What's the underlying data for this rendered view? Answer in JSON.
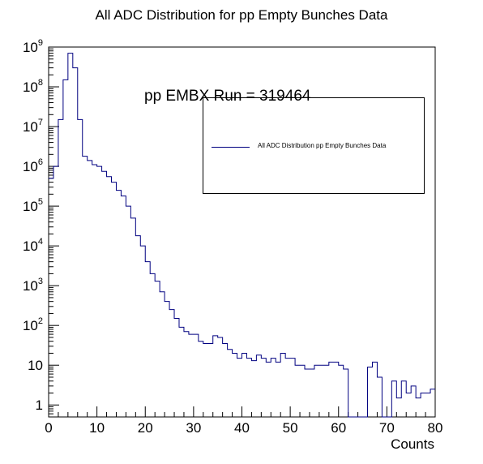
{
  "title": "All ADC Distribution for pp Empty Bunches Data",
  "annotation": "pp EMBX Run = 319464",
  "chart_data": {
    "type": "histogram",
    "title": "All ADC Distribution for pp Empty Bunches Data",
    "xlabel": "Counts",
    "ylabel": "",
    "xlim": [
      0,
      80
    ],
    "ylim": [
      0.5,
      1000000000
    ],
    "yscale": "log",
    "grid": false,
    "legend": {
      "placement": "top-right",
      "entries": [
        {
          "name": "All ADC Distribution pp Empty Bunches Data",
          "color": "#000080"
        }
      ]
    },
    "x_ticks": [
      "0",
      "10",
      "20",
      "30",
      "40",
      "50",
      "60",
      "70",
      "80"
    ],
    "y_ticks": [
      {
        "base": "1",
        "exp": ""
      },
      {
        "base": "10",
        "exp": ""
      },
      {
        "base": "10",
        "exp": "2"
      },
      {
        "base": "10",
        "exp": "3"
      },
      {
        "base": "10",
        "exp": "4"
      },
      {
        "base": "10",
        "exp": "5"
      },
      {
        "base": "10",
        "exp": "6"
      },
      {
        "base": "10",
        "exp": "7"
      },
      {
        "base": "10",
        "exp": "8"
      },
      {
        "base": "10",
        "exp": "9"
      }
    ],
    "bin_width": 1,
    "series": [
      {
        "name": "All ADC Distribution pp Empty Bunches Data",
        "color": "#000080",
        "x": [
          0,
          1,
          2,
          3,
          4,
          5,
          6,
          7,
          8,
          9,
          10,
          11,
          12,
          13,
          14,
          15,
          16,
          17,
          18,
          19,
          20,
          21,
          22,
          23,
          24,
          25,
          26,
          27,
          28,
          29,
          30,
          31,
          32,
          33,
          34,
          35,
          36,
          37,
          38,
          39,
          40,
          41,
          42,
          43,
          44,
          45,
          46,
          47,
          48,
          49,
          50,
          51,
          52,
          53,
          54,
          55,
          56,
          57,
          58,
          59,
          60,
          61,
          62,
          63,
          64,
          65,
          66,
          67,
          68,
          69,
          70,
          71,
          72,
          73,
          74,
          75,
          76,
          77,
          78,
          79
        ],
        "values": [
          500000,
          1000000,
          15000000,
          150000000,
          700000000,
          300000000,
          15000000,
          1800000,
          1400000,
          1100000,
          1000000,
          750000,
          550000,
          400000,
          250000,
          180000,
          100000,
          50000,
          18000,
          10000,
          4000,
          2000,
          1300,
          700,
          400,
          250,
          150,
          90,
          70,
          60,
          60,
          40,
          35,
          35,
          55,
          50,
          35,
          25,
          20,
          15,
          20,
          15,
          13,
          18,
          15,
          12,
          15,
          12,
          20,
          15,
          15,
          10,
          10,
          8,
          8,
          10,
          10,
          10,
          12,
          12,
          10,
          8,
          0,
          0,
          0,
          0,
          9,
          12,
          5,
          0,
          0,
          4,
          1.5,
          4,
          2,
          3,
          1.5,
          2,
          2,
          2.5
        ]
      }
    ]
  }
}
